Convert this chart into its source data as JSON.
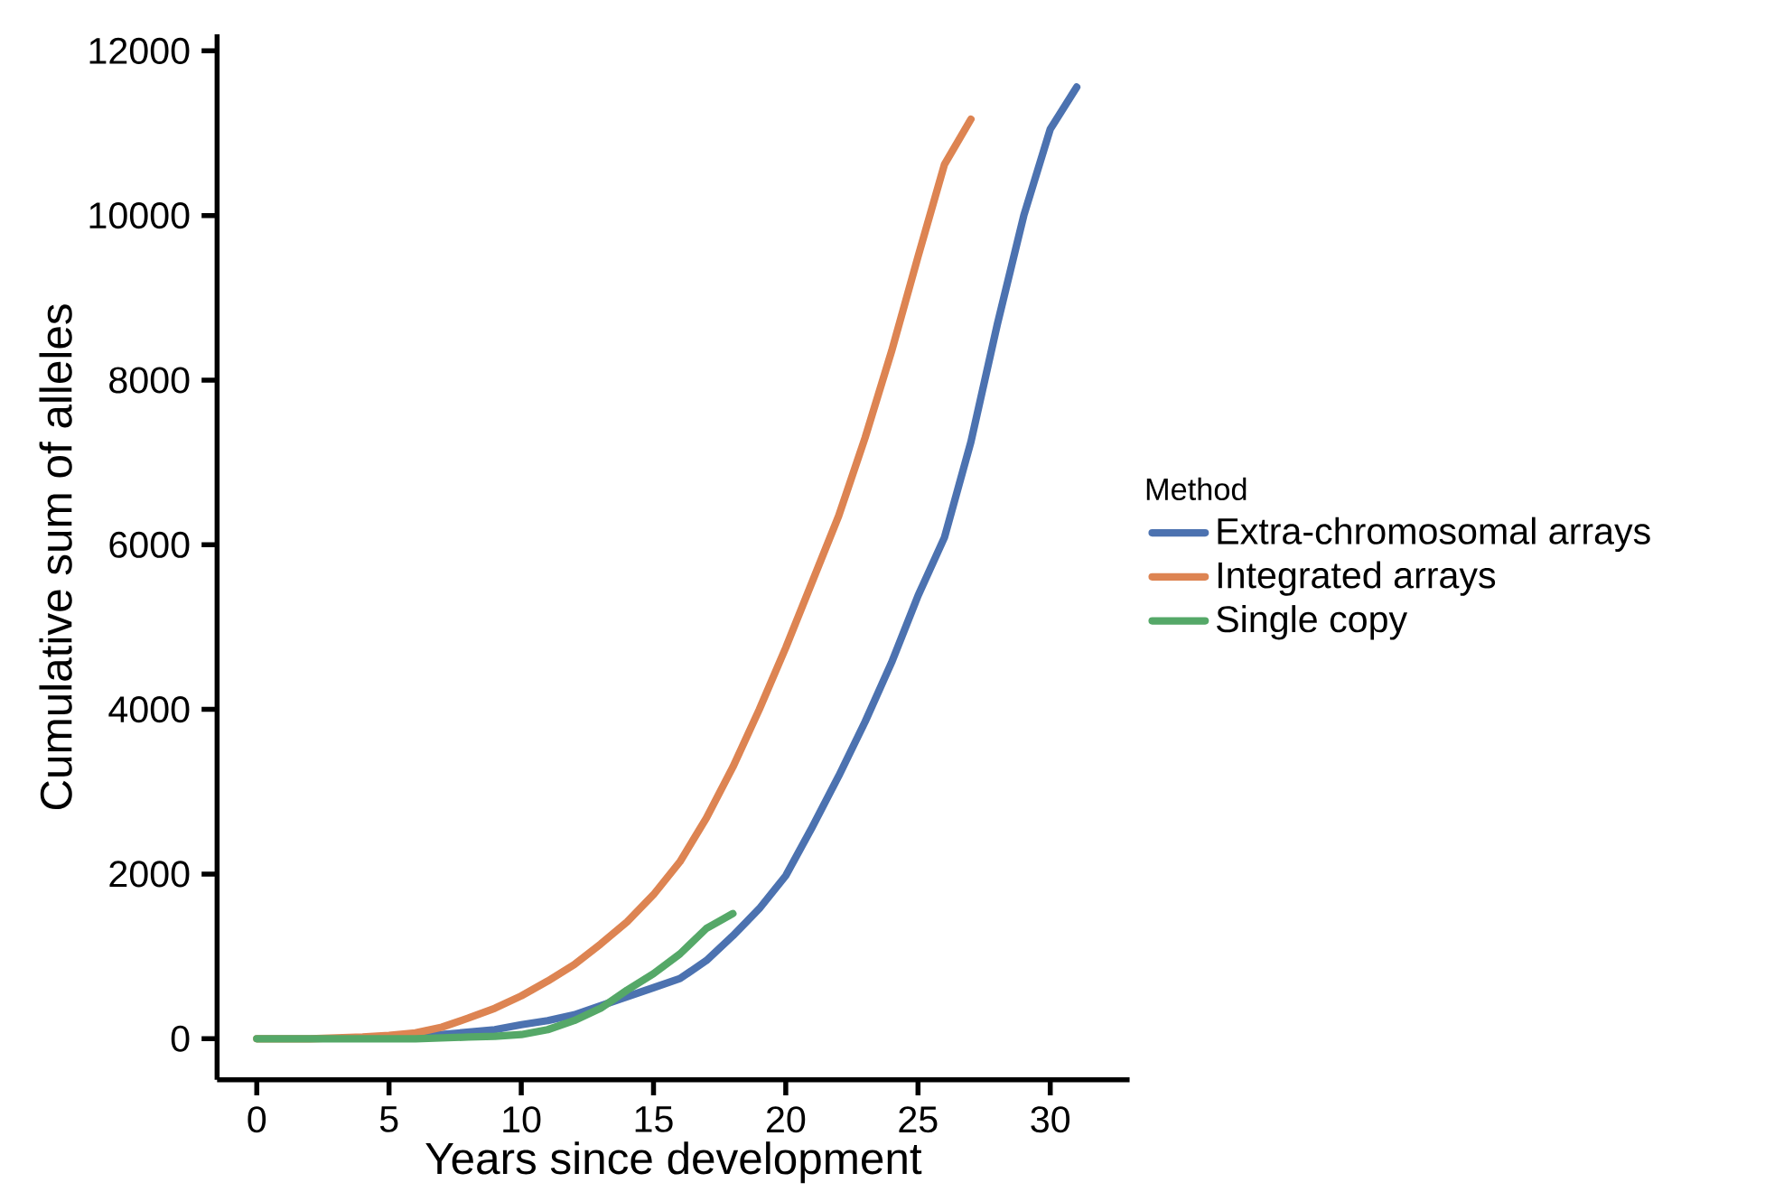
{
  "chart_data": {
    "type": "line",
    "xlabel": "Years since development",
    "ylabel": "Cumulative sum of alleles",
    "legend_title": "Method",
    "legend": "right",
    "xlim": [
      -1.5,
      33
    ],
    "ylim": [
      -500,
      12200
    ],
    "xticks": [
      0,
      5,
      10,
      15,
      20,
      25,
      30
    ],
    "yticks": [
      0,
      2000,
      4000,
      6000,
      8000,
      10000,
      12000
    ],
    "series": [
      {
        "name": "Extra-chromosomal arrays",
        "color": "#4c72b0",
        "x": [
          5,
          6,
          7,
          8,
          9,
          10,
          11,
          12,
          13,
          14,
          15,
          16,
          17,
          18,
          19,
          20,
          21,
          22,
          23,
          24,
          25,
          26,
          27,
          28,
          29,
          30,
          31
        ],
        "values": [
          20,
          30,
          50,
          80,
          110,
          170,
          220,
          290,
          400,
          510,
          620,
          730,
          950,
          1250,
          1580,
          1980,
          2570,
          3190,
          3850,
          4570,
          5380,
          6090,
          7250,
          8680,
          10000,
          11050,
          11560
        ]
      },
      {
        "name": "Integrated arrays",
        "color": "#dd8452",
        "x": [
          0,
          1,
          2,
          3,
          4,
          5,
          6,
          7,
          8,
          9,
          10,
          11,
          12,
          13,
          14,
          15,
          16,
          17,
          18,
          19,
          20,
          21,
          22,
          23,
          24,
          25,
          26,
          27
        ],
        "values": [
          0,
          0,
          0,
          10,
          20,
          40,
          70,
          140,
          250,
          370,
          520,
          700,
          900,
          1150,
          1420,
          1750,
          2150,
          2680,
          3300,
          4000,
          4750,
          5550,
          6350,
          7300,
          8350,
          9500,
          10620,
          11170
        ]
      },
      {
        "name": "Single copy",
        "color": "#55a868",
        "x": [
          0,
          1,
          2,
          3,
          4,
          5,
          6,
          7,
          8,
          9,
          10,
          11,
          12,
          13,
          14,
          15,
          16,
          17,
          18
        ],
        "values": [
          0,
          0,
          0,
          0,
          0,
          0,
          0,
          10,
          20,
          30,
          50,
          110,
          220,
          370,
          590,
          790,
          1030,
          1340,
          1520
        ]
      }
    ]
  }
}
